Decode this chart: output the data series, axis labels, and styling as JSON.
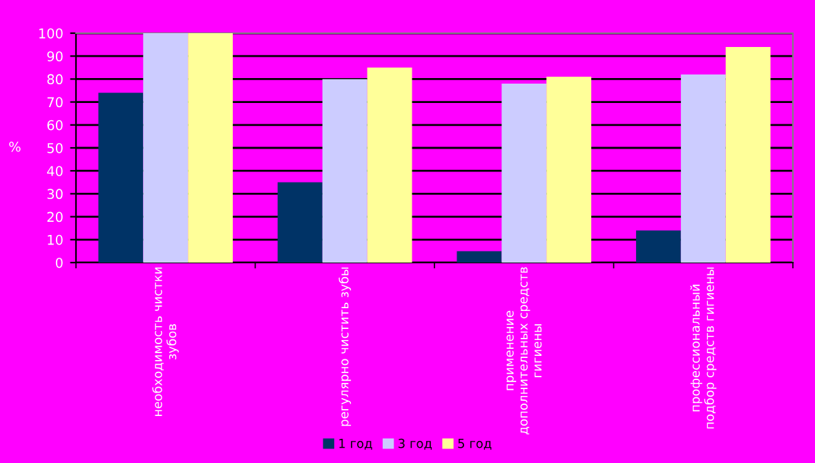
{
  "chart_data": {
    "type": "bar",
    "ylabel": "%",
    "categories": [
      "необходимость чистки зубов",
      "регулярно чистить зубы",
      "применение дополнительных средств гигиены",
      "профессиональный подбор средств гигиены"
    ],
    "series": [
      {
        "name": "1 год",
        "color": "#003366",
        "values": [
          74,
          35,
          5,
          14
        ]
      },
      {
        "name": "3 год",
        "color": "#ccccff",
        "values": [
          100,
          80,
          78,
          82
        ]
      },
      {
        "name": "5 год",
        "color": "#ffff99",
        "values": [
          100,
          85,
          81,
          94
        ]
      }
    ],
    "ylim": [
      0,
      100
    ],
    "yticks": [
      0,
      10,
      20,
      30,
      40,
      50,
      60,
      70,
      80,
      90,
      100
    ],
    "grid": "y",
    "legend": "bottom"
  }
}
